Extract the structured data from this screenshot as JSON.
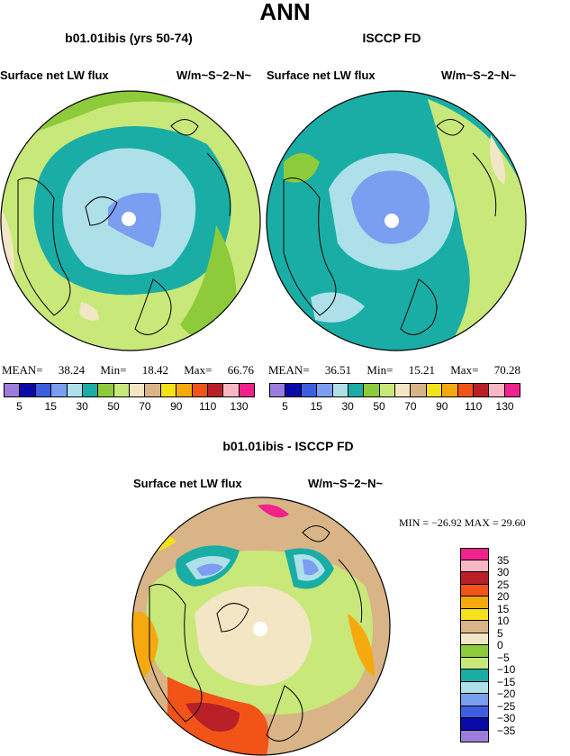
{
  "title": "ANN",
  "panels": [
    {
      "title": "b01.01ibis (yrs 50-74)",
      "variable": "Surface net LW flux",
      "units": "W/m~S~2~N~",
      "stats": {
        "mean_label": "MEAN=",
        "mean": "38.24",
        "min_label": "Min=",
        "min": "18.42",
        "max_label": "Max=",
        "max": "66.76"
      }
    },
    {
      "title": "ISCCP FD",
      "variable": "Surface net LW flux",
      "units": "W/m~S~2~N~",
      "stats": {
        "mean_label": "MEAN=",
        "mean": "36.51",
        "min_label": "Min=",
        "min": "15.21",
        "max_label": "Max=",
        "max": "70.28"
      }
    }
  ],
  "diff_panel": {
    "title": "b01.01ibis - ISCCP FD",
    "variable": "Surface net LW flux",
    "units": "W/m~S~2~N~",
    "minmax": "MIN = −26.92 MAX =   29.60"
  },
  "chart_data": [
    {
      "type": "heatmap",
      "projection": "north-polar-stereographic",
      "title": "b01.01ibis (yrs 50-74)",
      "mean": 38.24,
      "min": 18.42,
      "max": 66.76,
      "colorbar_labels": [
        "5",
        "15",
        "30",
        "50",
        "70",
        "90",
        "110",
        "130"
      ],
      "colorbar_colors": [
        "#9b7ddb",
        "#0a0aa8",
        "#3e5ee0",
        "#7a9ef0",
        "#aee0ea",
        "#1aada5",
        "#8ecb3a",
        "#c9e87a",
        "#f3e6c4",
        "#d8b487",
        "#f5e21a",
        "#f5a90f",
        "#f25418",
        "#b81f26",
        "#f7b7c4",
        "#f0228b"
      ],
      "land_mask": true,
      "dominant_field": "light-green mid-latitudes, teal and light-blue over Arctic Ocean"
    },
    {
      "type": "heatmap",
      "projection": "north-polar-stereographic",
      "title": "ISCCP FD",
      "mean": 36.51,
      "min": 15.21,
      "max": 70.28,
      "colorbar_labels": [
        "5",
        "15",
        "30",
        "50",
        "70",
        "90",
        "110",
        "130"
      ],
      "colorbar_colors": [
        "#9b7ddb",
        "#0a0aa8",
        "#3e5ee0",
        "#7a9ef0",
        "#aee0ea",
        "#1aada5",
        "#8ecb3a",
        "#c9e87a",
        "#f3e6c4",
        "#d8b487",
        "#f5e21a",
        "#f5a90f",
        "#f25418",
        "#b81f26",
        "#f7b7c4",
        "#f0228b"
      ],
      "land_mask": true,
      "dominant_field": "teal mid-latitudes, blue over central Arctic"
    },
    {
      "type": "heatmap",
      "projection": "north-polar-stereographic",
      "title": "b01.01ibis - ISCCP FD",
      "min": -26.92,
      "max": 29.6,
      "colorbar_labels": [
        "35",
        "30",
        "25",
        "20",
        "15",
        "10",
        "5",
        "0",
        "−5",
        "−10",
        "−15",
        "−20",
        "−25",
        "−30",
        "−35"
      ],
      "colorbar_colors": [
        "#f0228b",
        "#f7b7c4",
        "#b81f26",
        "#f25418",
        "#f5a90f",
        "#f5e21a",
        "#d8b487",
        "#f3e6c4",
        "#8ecb3a",
        "#c9e87a",
        "#1aada5",
        "#aee0ea",
        "#7a9ef0",
        "#3e5ee0",
        "#0a0aa8",
        "#9b7ddb"
      ]
    }
  ]
}
